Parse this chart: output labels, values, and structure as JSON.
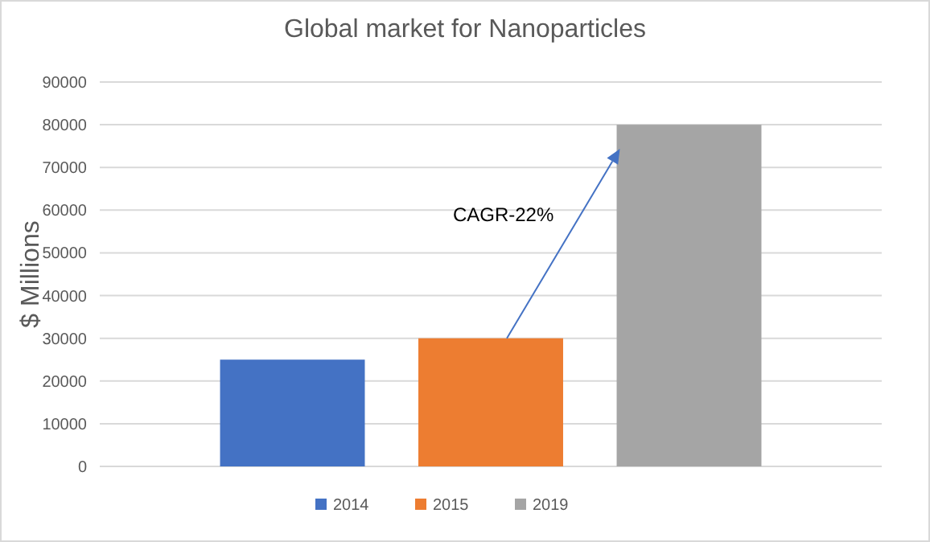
{
  "chart_data": {
    "type": "bar",
    "title": "Global market for Nanoparticles",
    "ylabel": "$ Millions",
    "categories": [
      null
    ],
    "series": [
      {
        "name": "2014",
        "color": "#4472c4",
        "values": [
          25000
        ]
      },
      {
        "name": "2015",
        "color": "#ed7d31",
        "values": [
          30000
        ]
      },
      {
        "name": "2019",
        "color": "#a5a5a5",
        "values": [
          80000
        ]
      }
    ],
    "ylim": [
      0,
      90000
    ],
    "yticks": [
      0,
      10000,
      20000,
      30000,
      40000,
      50000,
      60000,
      70000,
      80000,
      90000
    ],
    "grid": "y",
    "legend": "bottom",
    "annotations": [
      "CAGR-22%"
    ]
  }
}
